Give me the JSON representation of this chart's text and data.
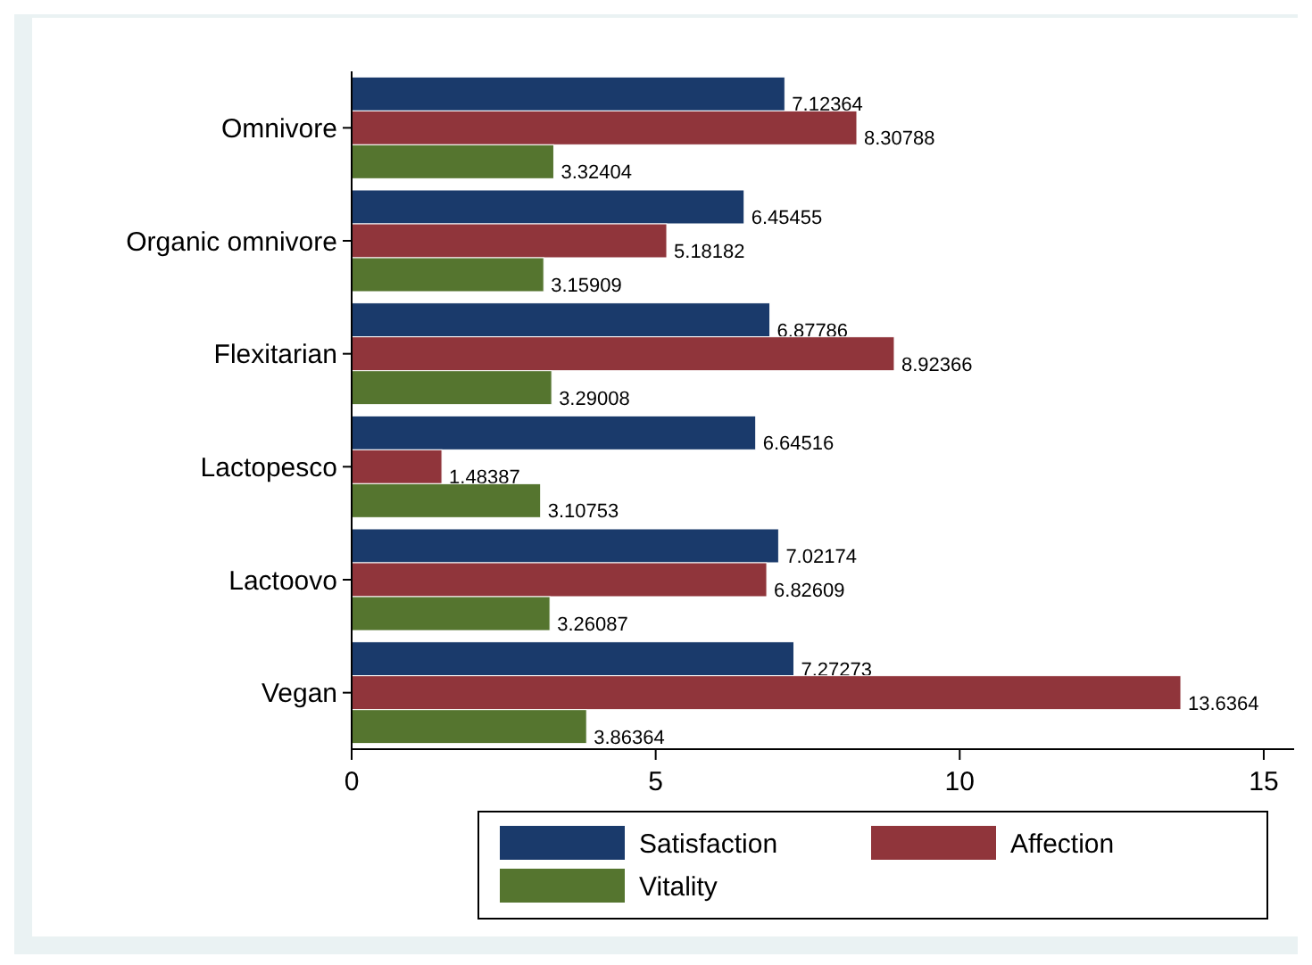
{
  "chart_data": {
    "type": "bar",
    "orientation": "horizontal",
    "categories": [
      "Omnivore",
      "Organic omnivore",
      "Flexitarian",
      "Lactopesco",
      "Lactoovo",
      "Vegan"
    ],
    "series": [
      {
        "name": "Satisfaction",
        "color": "#1a3a6b",
        "values": [
          7.12364,
          6.45455,
          6.87786,
          6.64516,
          7.02174,
          7.27273
        ]
      },
      {
        "name": "Affection",
        "color": "#90353b",
        "values": [
          8.30788,
          5.18182,
          8.92366,
          1.48387,
          6.82609,
          13.6364
        ]
      },
      {
        "name": "Vitality",
        "color": "#55752f",
        "values": [
          3.32404,
          3.15909,
          3.29008,
          3.10753,
          3.26087,
          3.86364
        ]
      }
    ],
    "xlim": [
      0,
      15.5
    ],
    "xticks": [
      0,
      5,
      10,
      15
    ],
    "data_labels": true,
    "grid": false,
    "legend": "bottom"
  }
}
